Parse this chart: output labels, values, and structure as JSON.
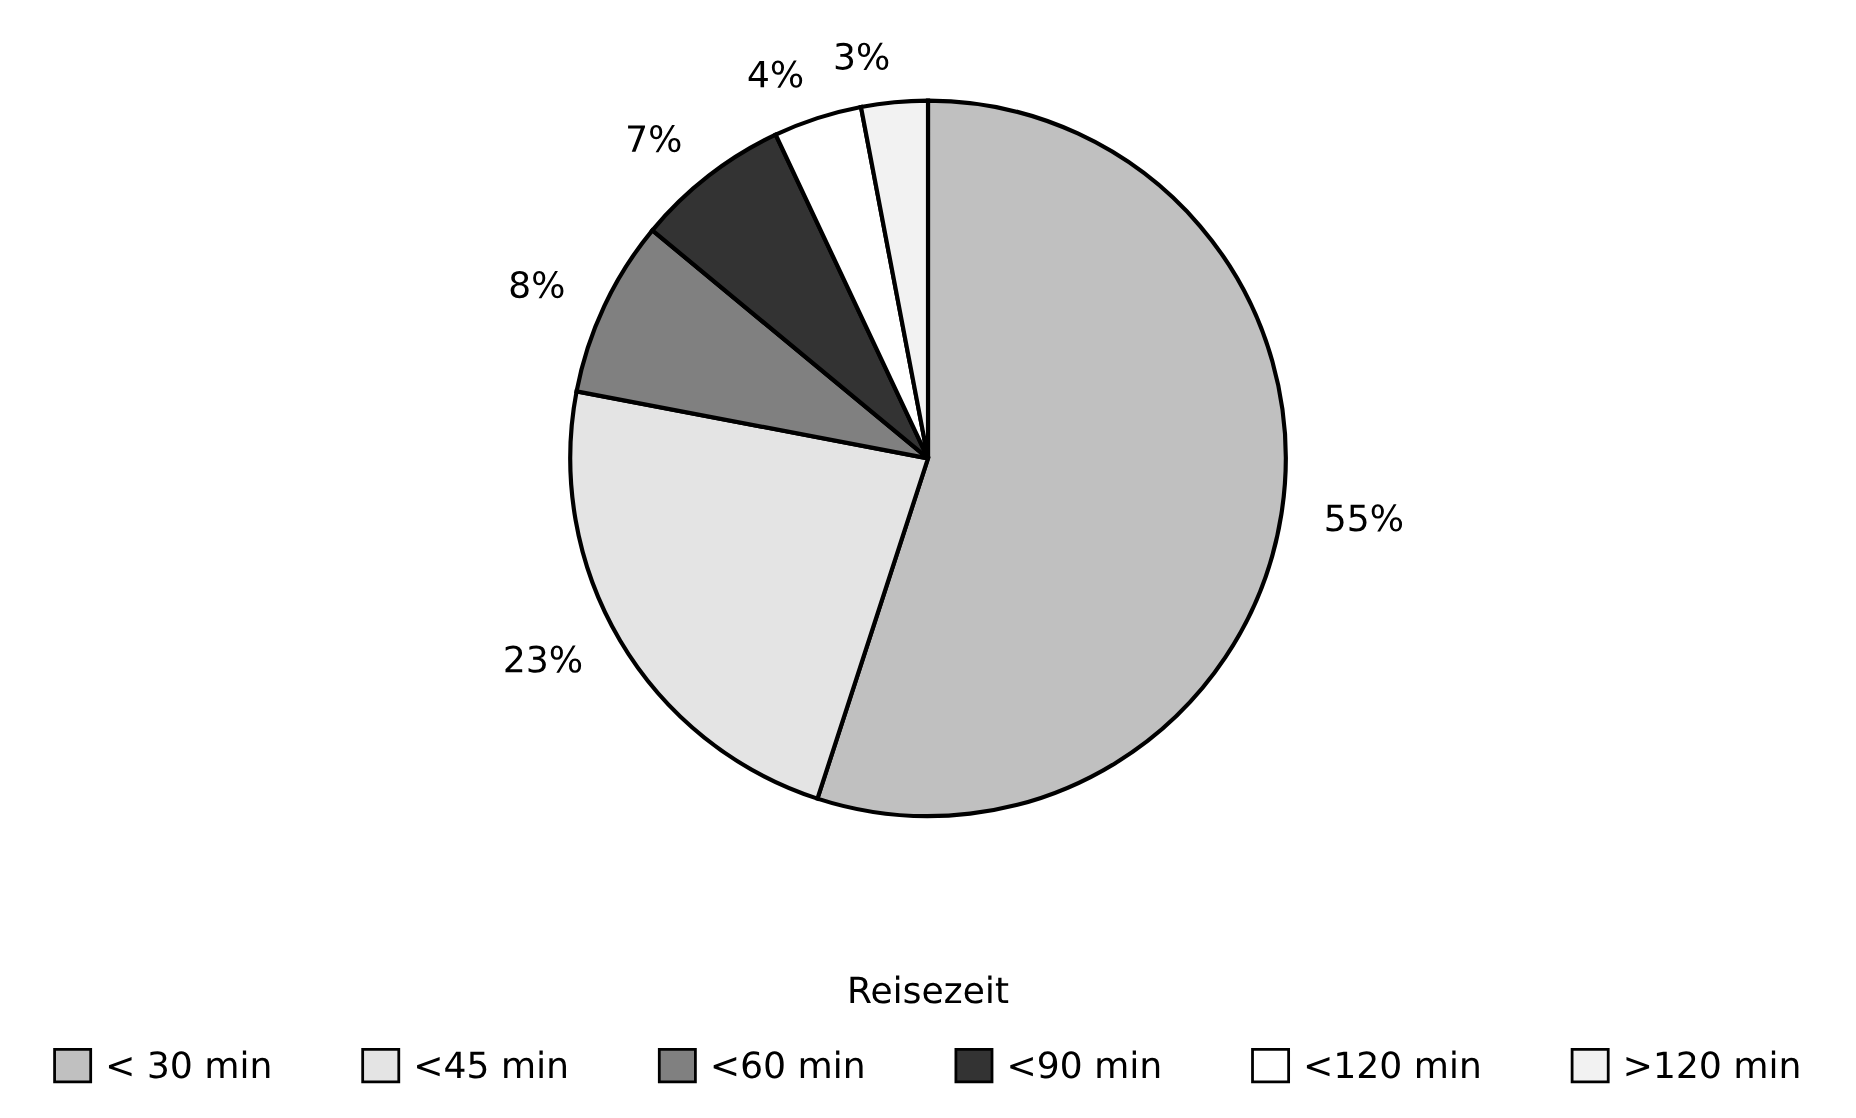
{
  "chart_data": {
    "type": "pie",
    "legend_title": "Reisezeit",
    "legend": "bottom",
    "categories": [
      "< 30 min",
      "<45 min",
      "<60 min",
      "<90 min",
      "<120 min",
      ">120 min"
    ],
    "values": [
      55,
      23,
      8,
      7,
      4,
      3
    ],
    "value_labels": [
      "55%",
      "23%",
      "8%",
      "7%",
      "4%",
      "3%"
    ],
    "colors": [
      "#c0c0c0",
      "#e4e4e4",
      "#808080",
      "#333333",
      "#ffffff",
      "#f2f2f2"
    ]
  }
}
